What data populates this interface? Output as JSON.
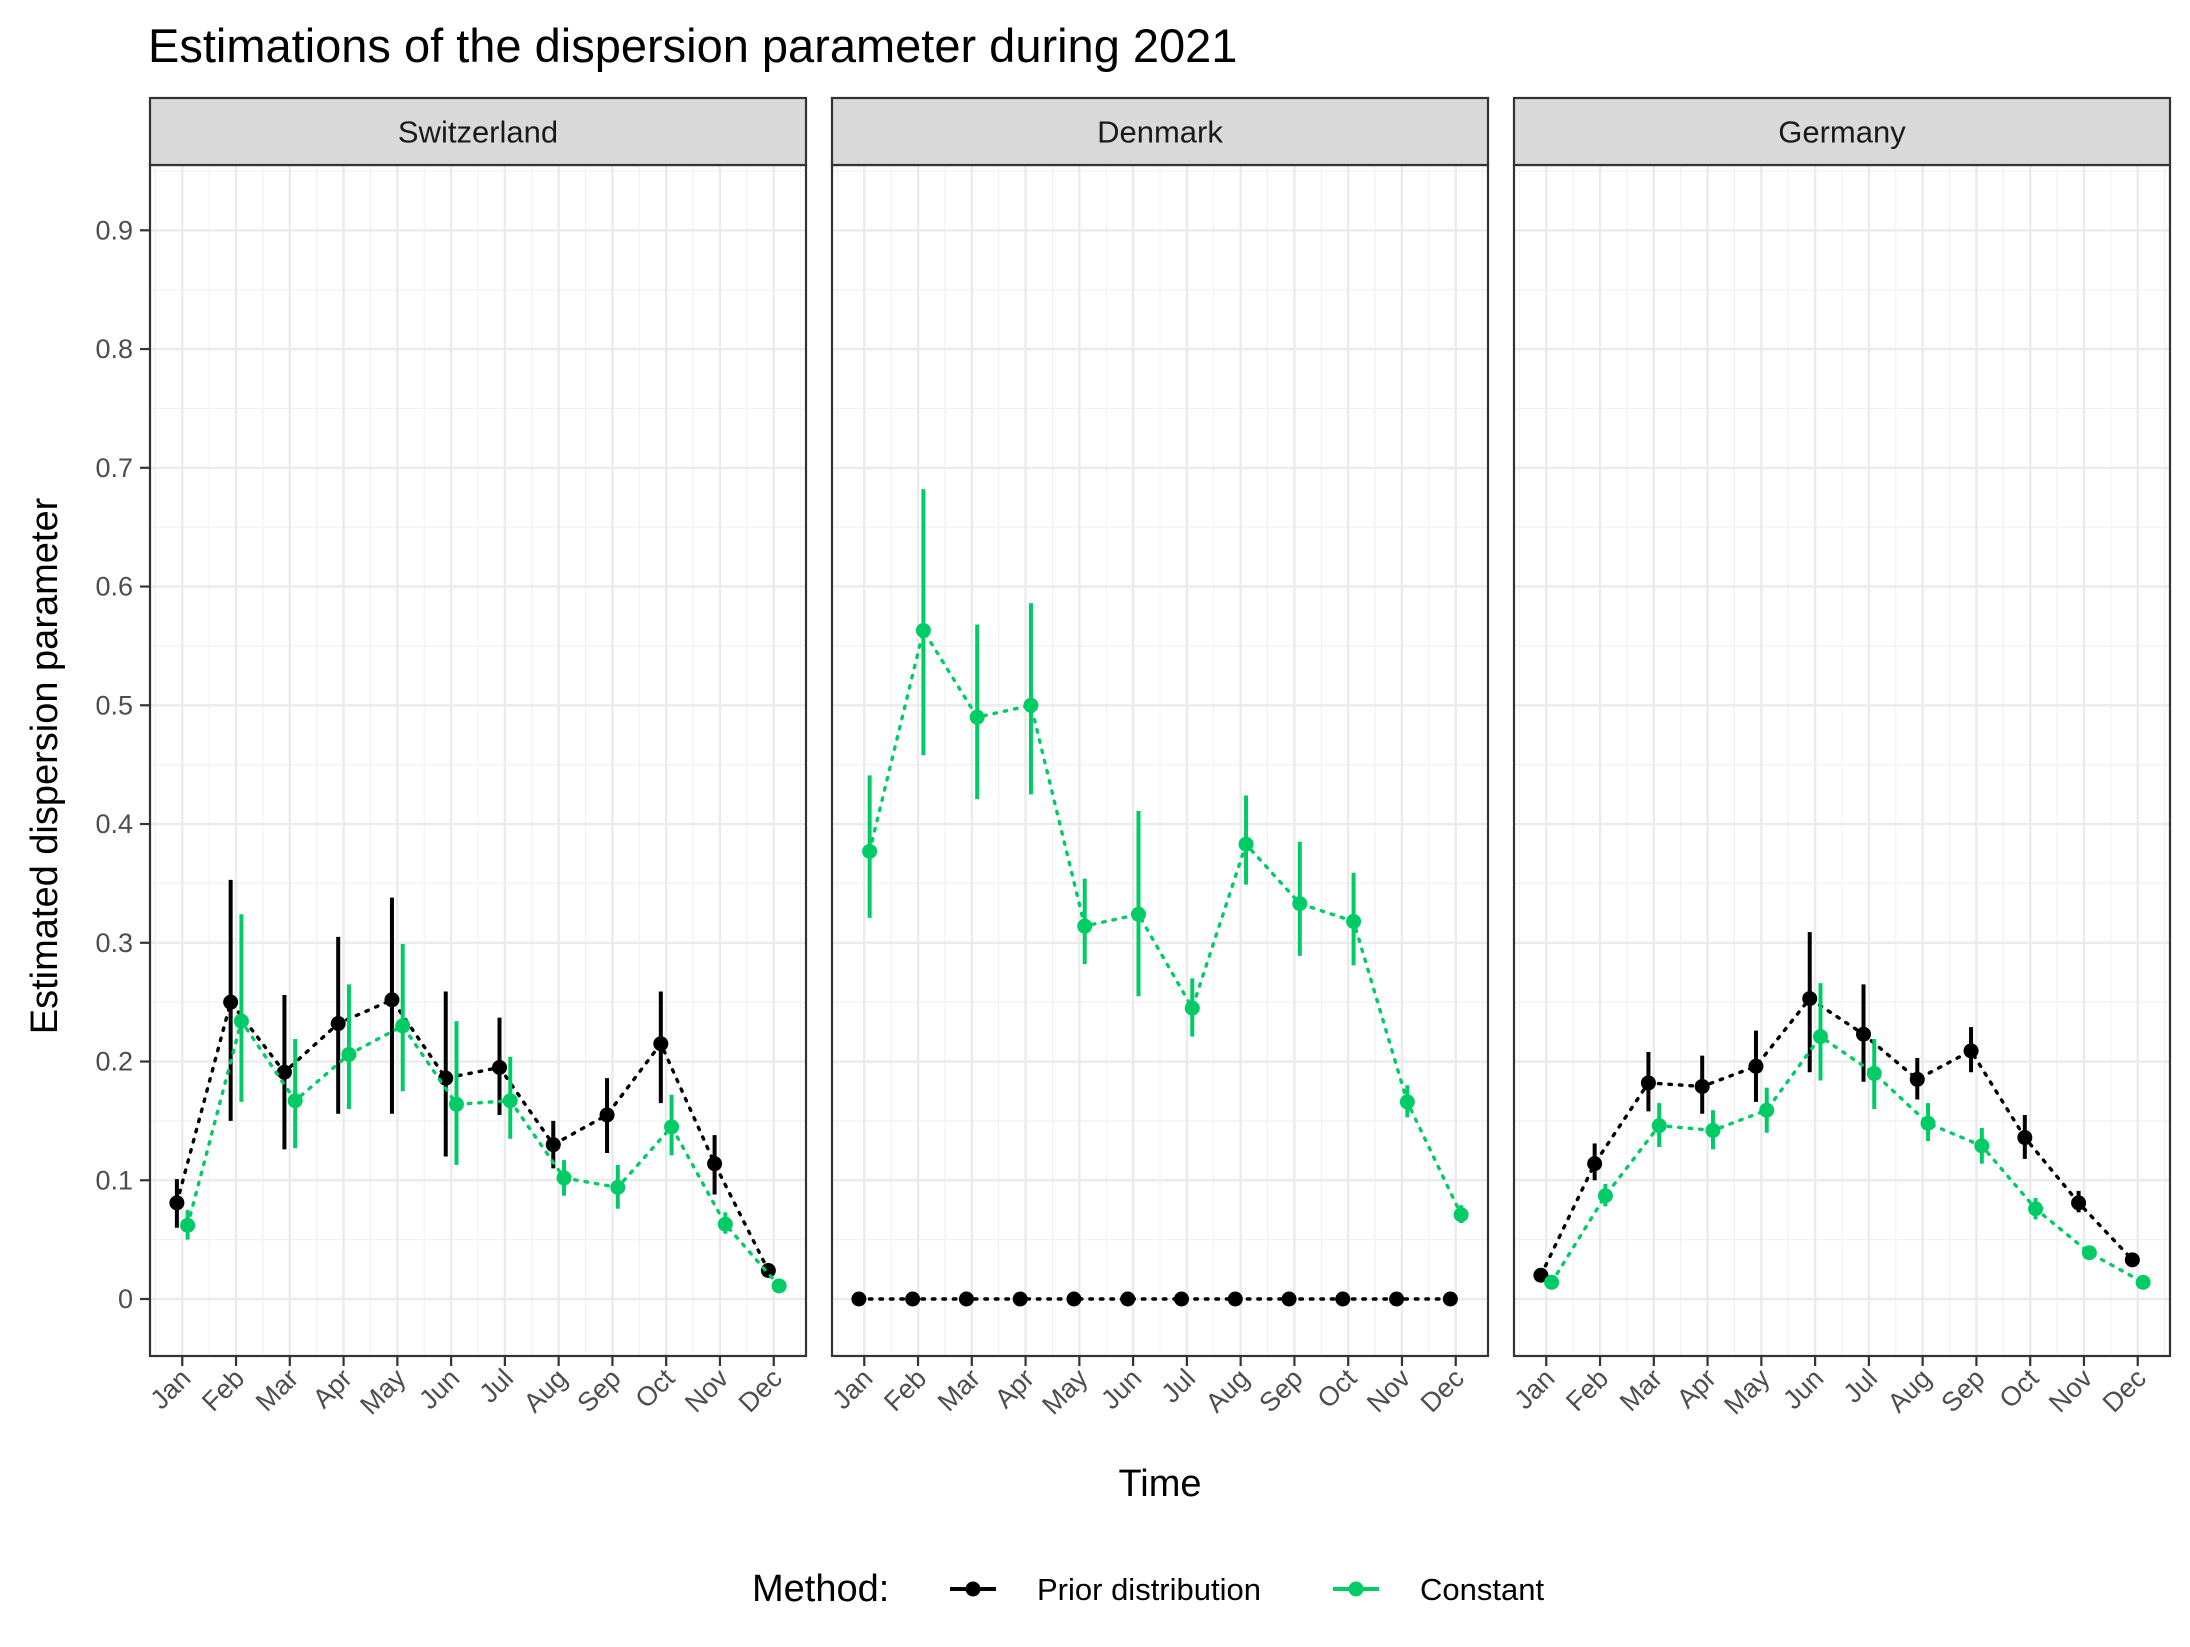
{
  "chart_data": {
    "type": "scatter",
    "title": "Estimations of the dispersion parameter during 2021",
    "xlabel": "Time",
    "ylabel": "Estimated dispersion parameter",
    "ylim": [
      -0.048,
      0.955
    ],
    "y_ticks": [
      0,
      0.1,
      0.2,
      0.3,
      0.4,
      0.5,
      0.6,
      0.7,
      0.8,
      0.9
    ],
    "y_tick_labels": [
      "0",
      "0.1",
      "0.2",
      "0.3",
      "0.4",
      "0.5",
      "0.6",
      "0.7",
      "0.8",
      "0.9"
    ],
    "categories": [
      "Jan",
      "Feb",
      "Mar",
      "Apr",
      "May",
      "Jun",
      "Jul",
      "Aug",
      "Sep",
      "Oct",
      "Nov",
      "Dec"
    ],
    "grid": true,
    "legend_placement": "bottom",
    "legend": {
      "title": "Method:",
      "entries": [
        {
          "label": "Prior distribution",
          "color": "#000000"
        },
        {
          "label": "Constant",
          "color": "#00cc66"
        }
      ]
    },
    "panels": [
      {
        "name": "Switzerland",
        "series": [
          {
            "name": "Prior distribution",
            "color": "#000000",
            "values": [
              0.081,
              0.25,
              0.191,
              0.232,
              0.252,
              0.186,
              0.195,
              0.13,
              0.155,
              0.215,
              0.114,
              0.024
            ],
            "lower": [
              0.06,
              0.15,
              0.126,
              0.156,
              0.156,
              0.12,
              0.155,
              0.11,
              0.123,
              0.165,
              0.088,
              0.021
            ],
            "upper": [
              0.101,
              0.353,
              0.256,
              0.305,
              0.338,
              0.259,
              0.237,
              0.15,
              0.186,
              0.259,
              0.138,
              0.027
            ]
          },
          {
            "name": "Constant",
            "color": "#00cc66",
            "values": [
              0.062,
              0.234,
              0.167,
              0.206,
              0.23,
              0.164,
              0.167,
              0.102,
              0.094,
              0.145,
              0.063,
              0.011
            ],
            "lower": [
              0.05,
              0.166,
              0.127,
              0.16,
              0.175,
              0.113,
              0.135,
              0.087,
              0.076,
              0.121,
              0.055,
              0.009
            ],
            "upper": [
              0.075,
              0.324,
              0.219,
              0.265,
              0.299,
              0.234,
              0.204,
              0.117,
              0.113,
              0.172,
              0.073,
              0.014
            ]
          }
        ]
      },
      {
        "name": "Denmark",
        "series": [
          {
            "name": "Prior distribution",
            "color": "#000000",
            "values": [
              0,
              0,
              0,
              0,
              0,
              0,
              0,
              0,
              0,
              0,
              0,
              0
            ],
            "lower": [
              0,
              0,
              0,
              0,
              0,
              0,
              0,
              0,
              0,
              0,
              0,
              0
            ],
            "upper": [
              0,
              0,
              0,
              0,
              0,
              0,
              0,
              0,
              0,
              0,
              0,
              0
            ]
          },
          {
            "name": "Constant",
            "color": "#00cc66",
            "values": [
              0.377,
              0.563,
              0.49,
              0.5,
              0.314,
              0.324,
              0.245,
              0.383,
              0.333,
              0.318,
              0.166,
              0.071
            ],
            "lower": [
              0.321,
              0.458,
              0.421,
              0.425,
              0.282,
              0.255,
              0.221,
              0.349,
              0.289,
              0.281,
              0.153,
              0.064
            ],
            "upper": [
              0.441,
              0.682,
              0.568,
              0.586,
              0.354,
              0.411,
              0.27,
              0.424,
              0.385,
              0.359,
              0.18,
              0.079
            ]
          }
        ]
      },
      {
        "name": "Germany",
        "series": [
          {
            "name": "Prior distribution",
            "color": "#000000",
            "values": [
              0.02,
              0.114,
              0.182,
              0.179,
              0.196,
              0.253,
              0.223,
              0.185,
              0.209,
              0.136,
              0.081,
              0.033
            ],
            "lower": [
              0.016,
              0.1,
              0.158,
              0.156,
              0.166,
              0.191,
              0.183,
              0.168,
              0.191,
              0.118,
              0.073,
              0.03
            ],
            "upper": [
              0.024,
              0.131,
              0.208,
              0.205,
              0.226,
              0.309,
              0.265,
              0.203,
              0.229,
              0.155,
              0.091,
              0.037
            ]
          },
          {
            "name": "Constant",
            "color": "#00cc66",
            "values": [
              0.014,
              0.087,
              0.146,
              0.142,
              0.159,
              0.221,
              0.19,
              0.148,
              0.129,
              0.076,
              0.039,
              0.014
            ],
            "lower": [
              0.011,
              0.078,
              0.128,
              0.126,
              0.14,
              0.184,
              0.16,
              0.133,
              0.114,
              0.067,
              0.034,
              0.012
            ],
            "upper": [
              0.016,
              0.097,
              0.165,
              0.159,
              0.178,
              0.266,
              0.219,
              0.165,
              0.144,
              0.085,
              0.044,
              0.016
            ]
          }
        ]
      }
    ]
  }
}
